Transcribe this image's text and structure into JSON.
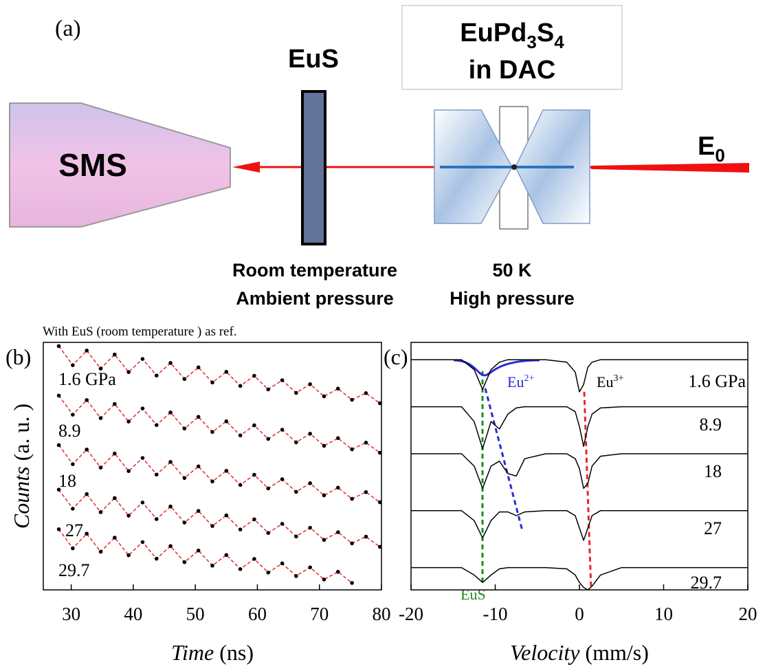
{
  "diagram": {
    "panel": "(a)",
    "eus_label": "EuS",
    "sample": {
      "main": "EuPd",
      "sub1": "3",
      "mid": "S",
      "sub2": "4",
      "line2": "in DAC"
    },
    "detector": "SMS",
    "beam": {
      "main": "E",
      "sub": "0"
    },
    "eus_conditions": [
      "Room temperature",
      "Ambient pressure"
    ],
    "sample_conditions": [
      "50 K",
      "High pressure"
    ]
  },
  "caption": "With EuS (room temperature ) as ref.",
  "chart_data": [
    {
      "type": "scatter",
      "panel": "(b)",
      "x_label": {
        "var": "Time",
        "unit": "(ns)"
      },
      "y_label": {
        "var": "Counts",
        "unit": "(a. u. )"
      },
      "xlim": [
        25.5,
        80
      ],
      "xticks": [
        30,
        40,
        50,
        60,
        70,
        80
      ],
      "ylim": [
        0,
        10
      ],
      "fit_color": "#e8262a",
      "x": [
        28,
        30.25,
        32.5,
        34.75,
        37,
        39.25,
        41.5,
        43.75,
        46,
        48.25,
        50.5,
        52.75,
        55,
        57.25,
        59.5,
        61.75,
        64,
        66.25,
        68.5,
        70.75,
        73,
        75.25,
        77.5,
        79.75
      ],
      "series": [
        {
          "name": "1.6 GPa",
          "color": "#000000",
          "values": [
            9.85,
            9.08,
            9.67,
            8.94,
            9.51,
            8.8,
            9.33,
            8.66,
            9.17,
            8.52,
            8.99,
            8.38,
            8.81,
            8.24,
            8.65,
            8.1,
            8.47,
            7.96,
            8.31,
            7.82,
            8.13,
            7.68,
            7.95,
            7.54
          ]
        },
        {
          "name": "8.9",
          "color": "#000000",
          "values": [
            7.85,
            7.08,
            7.67,
            6.94,
            7.51,
            6.8,
            7.33,
            6.66,
            7.17,
            6.52,
            6.99,
            6.38,
            6.81,
            6.24,
            6.65,
            6.1,
            6.47,
            5.96,
            6.31,
            5.82,
            6.13,
            5.68,
            5.95,
            5.54
          ]
        },
        {
          "name": "18",
          "color": "#000000",
          "values": [
            5.85,
            5.08,
            5.67,
            4.94,
            5.51,
            4.8,
            5.33,
            4.66,
            5.17,
            4.52,
            4.99,
            4.38,
            4.81,
            4.24,
            4.65,
            4.1,
            4.47,
            3.96,
            4.31,
            3.82,
            4.13,
            3.68,
            3.95,
            3.54
          ]
        },
        {
          "name": "27",
          "color": "#000000",
          "values": [
            4.05,
            3.28,
            3.87,
            3.14,
            3.71,
            3.0,
            3.53,
            2.86,
            3.37,
            2.72,
            3.19,
            2.58,
            3.01,
            2.44,
            2.85,
            2.3,
            2.67,
            2.16,
            2.51,
            2.02,
            2.33,
            1.88,
            2.15,
            1.74
          ]
        },
        {
          "name": "29.7",
          "color": "#000000",
          "values": [
            2.45,
            1.68,
            2.27,
            1.54,
            2.11,
            1.4,
            1.93,
            1.26,
            1.77,
            1.12,
            1.59,
            0.98,
            1.41,
            0.84,
            1.25,
            0.7,
            1.07,
            0.56,
            0.91,
            0.42,
            0.73,
            0.28,
            null,
            null
          ]
        }
      ]
    },
    {
      "type": "line",
      "panel": "(c)",
      "x_label": {
        "var": "Velocity",
        "unit": "(mm/s)"
      },
      "xlim": [
        -20,
        20
      ],
      "xticks": [
        -20,
        -10,
        0,
        10,
        20
      ],
      "ylim": [
        0,
        10
      ],
      "x": [
        -20,
        -14,
        -12.5,
        -11.5,
        -10.5,
        -9.5,
        -8.5,
        -7.5,
        -6.5,
        -4,
        -1.5,
        -0.5,
        0,
        0.5,
        1,
        1.5,
        2.5,
        5,
        20
      ],
      "series": [
        {
          "name": "1.6 GPa",
          "color": "#000000",
          "values": [
            9.3,
            9.3,
            8.9,
            8.1,
            8.9,
            9.2,
            9.3,
            9.3,
            9.3,
            9.3,
            9.2,
            8.8,
            8.0,
            8.3,
            9.0,
            9.2,
            9.3,
            9.3,
            9.3
          ]
        },
        {
          "name": "8.9",
          "color": "#000000",
          "values": [
            7.4,
            7.4,
            6.8,
            5.7,
            6.8,
            6.5,
            7.1,
            7.35,
            7.4,
            7.4,
            7.4,
            7.2,
            6.6,
            5.8,
            6.6,
            7.1,
            7.35,
            7.4,
            7.4
          ]
        },
        {
          "name": "18",
          "color": "#000000",
          "values": [
            5.5,
            5.5,
            5.0,
            4.1,
            5.0,
            5.2,
            4.7,
            4.6,
            5.3,
            5.5,
            5.5,
            5.3,
            4.9,
            4.1,
            4.3,
            5.0,
            5.4,
            5.5,
            5.5
          ]
        },
        {
          "name": "27",
          "color": "#000000",
          "values": [
            3.2,
            3.2,
            2.8,
            2.1,
            2.8,
            3.15,
            3.15,
            3.0,
            3.15,
            3.2,
            3.2,
            3.0,
            2.5,
            2.0,
            2.5,
            3.0,
            3.2,
            3.2,
            3.2
          ]
        },
        {
          "name": "29.7",
          "color": "#000000",
          "values": [
            0.9,
            0.9,
            0.6,
            0.3,
            0.6,
            0.85,
            0.9,
            0.9,
            0.9,
            0.9,
            0.85,
            0.6,
            0.3,
            0.1,
            0.0,
            0.15,
            0.6,
            0.9,
            0.9
          ]
        }
      ],
      "annotations": {
        "eu2": {
          "main": "Eu",
          "sup": "2+"
        },
        "eu3": {
          "main": "Eu",
          "sup": "3+"
        },
        "eus": "EuS"
      }
    }
  ]
}
